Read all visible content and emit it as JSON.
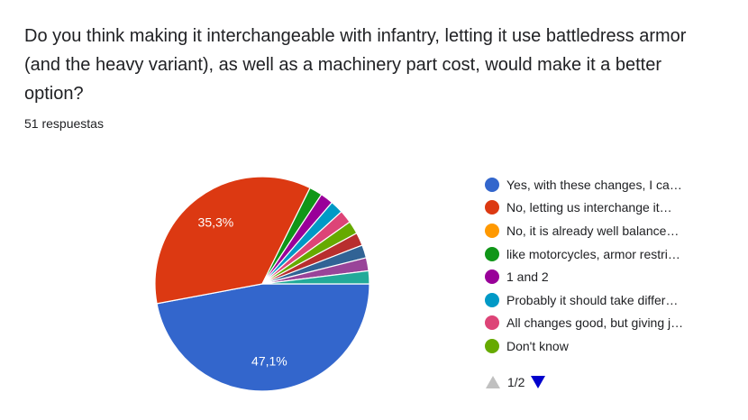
{
  "question": {
    "title": "Do you think making it interchangeable with infantry, letting it use battledress armor (and the heavy variant), as well as a machinery part cost, would make it a better option?",
    "response_count": "51 respuestas"
  },
  "chart_data": {
    "type": "pie",
    "total": 51,
    "slices": [
      {
        "label": "Yes, with these changes, I ca…",
        "value": 24,
        "percent_label": "47,1%",
        "color": "#3366cc"
      },
      {
        "label": "No, letting us interchange it…",
        "value": 18,
        "percent_label": "35,3%",
        "color": "#dc3912"
      },
      {
        "label": "No, it is already well balance…",
        "value": 0,
        "percent_label": "",
        "color": "#ff9900"
      },
      {
        "label": "like motorcycles, armor restri…",
        "value": 1,
        "percent_label": "",
        "color": "#109618"
      },
      {
        "label": "1 and 2",
        "value": 1,
        "percent_label": "",
        "color": "#990099"
      },
      {
        "label": "Probably it should take differ…",
        "value": 1,
        "percent_label": "",
        "color": "#0099c6"
      },
      {
        "label": "All changes good, but giving j…",
        "value": 1,
        "percent_label": "",
        "color": "#dd4477"
      },
      {
        "label": "Don't know",
        "value": 1,
        "percent_label": "",
        "color": "#66aa00"
      },
      {
        "label": "",
        "value": 1,
        "percent_label": "",
        "color": "#b82e2e"
      },
      {
        "label": "",
        "value": 1,
        "percent_label": "",
        "color": "#316395"
      },
      {
        "label": "",
        "value": 1,
        "percent_label": "",
        "color": "#994499"
      },
      {
        "label": "",
        "value": 1,
        "percent_label": "",
        "color": "#22aa99"
      }
    ],
    "legend_position": "right"
  },
  "legend_visible_count": 8,
  "pager": {
    "label": "1/2",
    "up_color": "#c0c0c0",
    "down_color": "#0000cc"
  }
}
